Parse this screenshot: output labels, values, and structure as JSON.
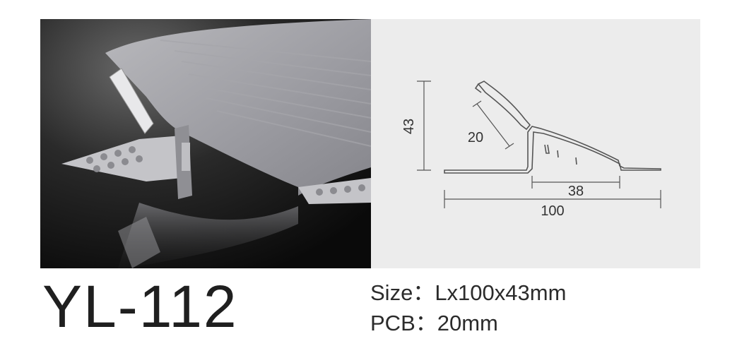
{
  "product": {
    "model": "YL-112",
    "size_label": "Size：",
    "size_value": "Lx100x43mm",
    "pcb_label": "PCB：",
    "pcb_value": "20mm"
  },
  "drawing": {
    "height_label": "43",
    "pcb_label": "20",
    "inner_width_label": "38",
    "total_width_label": "100"
  }
}
